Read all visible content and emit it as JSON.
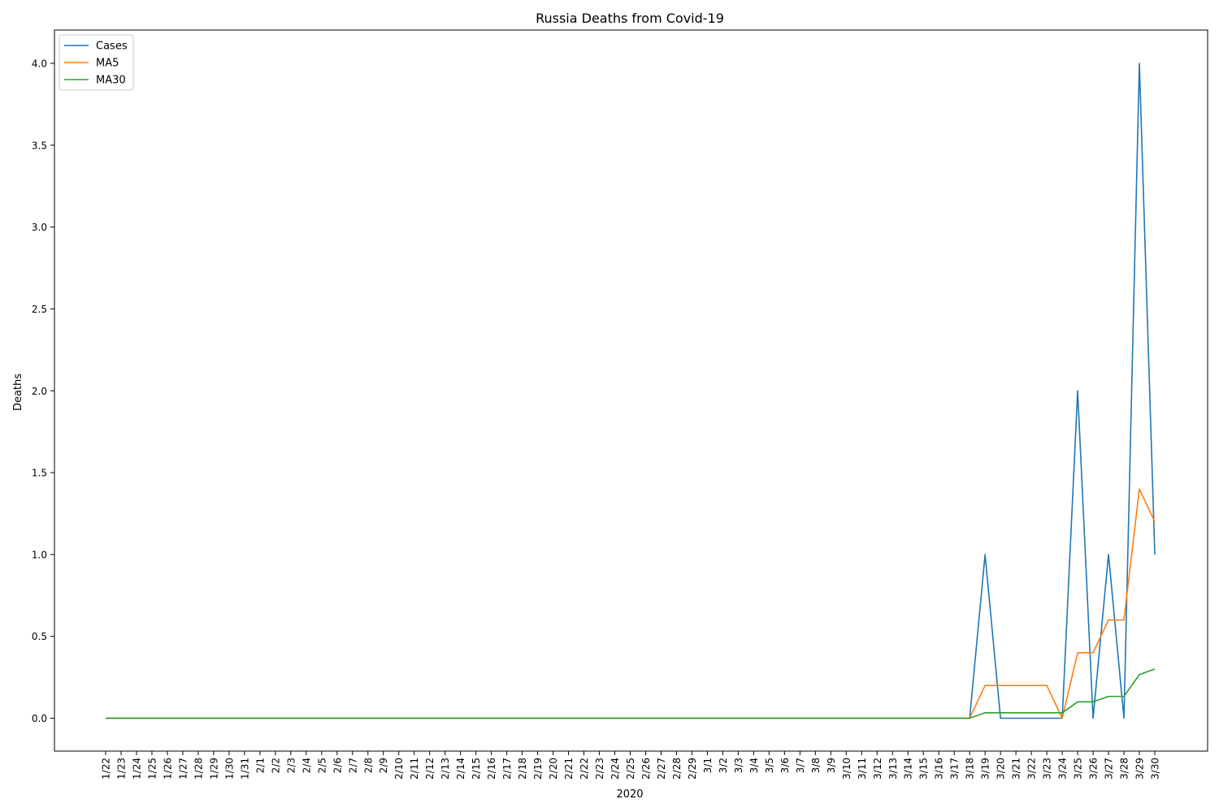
{
  "chart_data": {
    "type": "line",
    "title": "Russia Deaths from Covid-19",
    "xlabel": "2020",
    "ylabel": "Deaths",
    "ylim": [
      -0.2,
      4.2
    ],
    "yticks": [
      0.0,
      0.5,
      1.0,
      1.5,
      2.0,
      2.5,
      3.0,
      3.5,
      4.0
    ],
    "ytick_labels": [
      "0.0",
      "0.5",
      "1.0",
      "1.5",
      "2.0",
      "2.5",
      "3.0",
      "3.5",
      "4.0"
    ],
    "grid": false,
    "legend_position": "top-left",
    "categories": [
      "1/22",
      "1/23",
      "1/24",
      "1/25",
      "1/26",
      "1/27",
      "1/28",
      "1/29",
      "1/30",
      "1/31",
      "2/1",
      "2/2",
      "2/3",
      "2/4",
      "2/5",
      "2/6",
      "2/7",
      "2/8",
      "2/9",
      "2/10",
      "2/11",
      "2/12",
      "2/13",
      "2/14",
      "2/15",
      "2/16",
      "2/17",
      "2/18",
      "2/19",
      "2/20",
      "2/21",
      "2/22",
      "2/23",
      "2/24",
      "2/25",
      "2/26",
      "2/27",
      "2/28",
      "2/29",
      "3/1",
      "3/2",
      "3/3",
      "3/4",
      "3/5",
      "3/6",
      "3/7",
      "3/8",
      "3/9",
      "3/10",
      "3/11",
      "3/12",
      "3/13",
      "3/14",
      "3/15",
      "3/16",
      "3/17",
      "3/18",
      "3/19",
      "3/20",
      "3/21",
      "3/22",
      "3/23",
      "3/24",
      "3/25",
      "3/26",
      "3/27",
      "3/28",
      "3/29",
      "3/30"
    ],
    "series": [
      {
        "name": "Cases",
        "color": "#1f77b4",
        "values": [
          0,
          0,
          0,
          0,
          0,
          0,
          0,
          0,
          0,
          0,
          0,
          0,
          0,
          0,
          0,
          0,
          0,
          0,
          0,
          0,
          0,
          0,
          0,
          0,
          0,
          0,
          0,
          0,
          0,
          0,
          0,
          0,
          0,
          0,
          0,
          0,
          0,
          0,
          0,
          0,
          0,
          0,
          0,
          0,
          0,
          0,
          0,
          0,
          0,
          0,
          0,
          0,
          0,
          0,
          0,
          0,
          0,
          1,
          0,
          0,
          0,
          0,
          0,
          2,
          0,
          1,
          0,
          4,
          1
        ]
      },
      {
        "name": "MA5",
        "color": "#ff7f0e",
        "values": [
          0,
          0,
          0,
          0,
          0,
          0,
          0,
          0,
          0,
          0,
          0,
          0,
          0,
          0,
          0,
          0,
          0,
          0,
          0,
          0,
          0,
          0,
          0,
          0,
          0,
          0,
          0,
          0,
          0,
          0,
          0,
          0,
          0,
          0,
          0,
          0,
          0,
          0,
          0,
          0,
          0,
          0,
          0,
          0,
          0,
          0,
          0,
          0,
          0,
          0,
          0,
          0,
          0,
          0,
          0,
          0,
          0,
          0.2,
          0.2,
          0.2,
          0.2,
          0.2,
          0,
          0.4,
          0.4,
          0.6,
          0.6,
          1.4,
          1.2
        ]
      },
      {
        "name": "MA30",
        "color": "#2ca02c",
        "values": [
          0,
          0,
          0,
          0,
          0,
          0,
          0,
          0,
          0,
          0,
          0,
          0,
          0,
          0,
          0,
          0,
          0,
          0,
          0,
          0,
          0,
          0,
          0,
          0,
          0,
          0,
          0,
          0,
          0,
          0,
          0,
          0,
          0,
          0,
          0,
          0,
          0,
          0,
          0,
          0,
          0,
          0,
          0,
          0,
          0,
          0,
          0,
          0,
          0,
          0,
          0,
          0,
          0,
          0,
          0,
          0,
          0,
          0.0333,
          0.0333,
          0.0333,
          0.0333,
          0.0333,
          0.0333,
          0.1,
          0.1,
          0.1333,
          0.1333,
          0.2667,
          0.3
        ]
      }
    ]
  }
}
